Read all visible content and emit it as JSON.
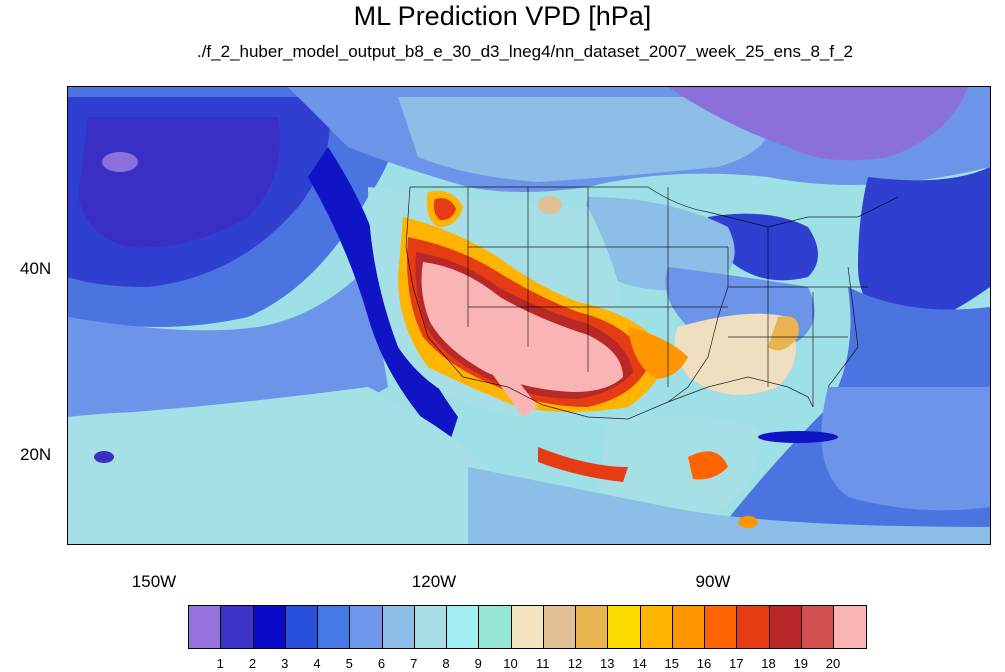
{
  "title": "ML Prediction VPD [hPa]",
  "subtitle": "./f_2_huber_model_output_b8_e_30_d3_lneg4/nn_dataset_2007_week_25_ens_8_f_2",
  "lat_labels": [
    "40N",
    "20N"
  ],
  "lon_labels": [
    "150W",
    "120W",
    "90W"
  ],
  "colorbar": {
    "colors": [
      "#9673dc",
      "#3c32c8",
      "#0a0ac8",
      "#2850dc",
      "#4678e6",
      "#6e96ea",
      "#8cbee8",
      "#a6e0e6",
      "#a0eef2",
      "#96e6d6",
      "#f4e4c0",
      "#e0c094",
      "#e8b450",
      "#ffdc00",
      "#ffb400",
      "#ff9600",
      "#ff6400",
      "#e63c14",
      "#b92828",
      "#d25050",
      "#fab4b4"
    ],
    "labels": [
      "1",
      "2",
      "3",
      "4",
      "5",
      "6",
      "7",
      "8",
      "9",
      "10",
      "11",
      "12",
      "13",
      "14",
      "15",
      "16",
      "17",
      "18",
      "19",
      "20"
    ]
  }
}
